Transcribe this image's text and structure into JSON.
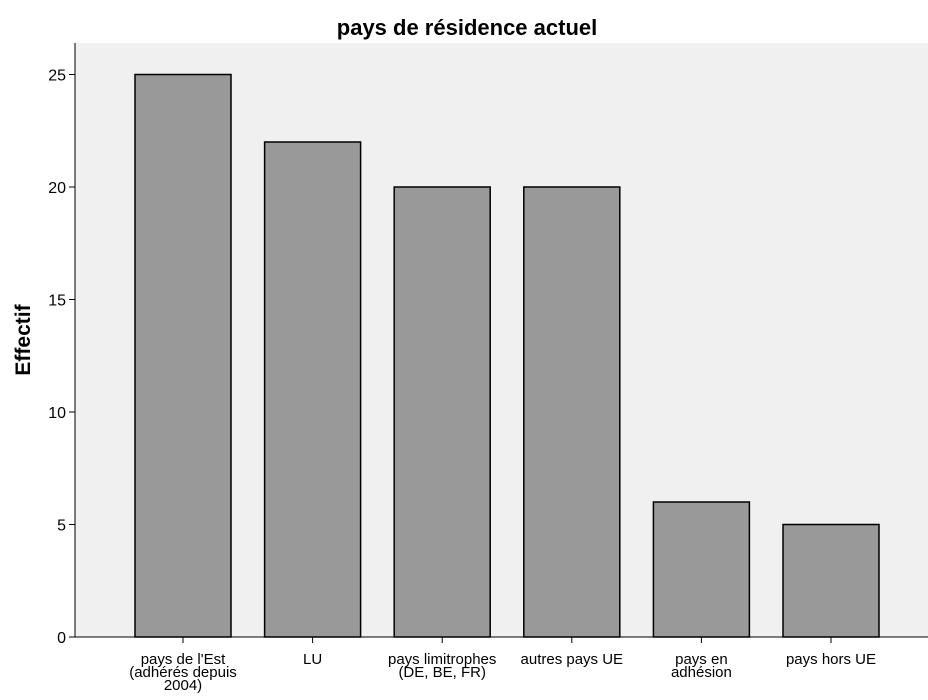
{
  "chart_data": {
    "type": "bar",
    "title": "pays de résidence actuel",
    "xlabel": "",
    "ylabel": "Effectif",
    "categories": [
      [
        "pays de l'Est",
        "(adhérés depuis",
        "2004)"
      ],
      [
        "LU"
      ],
      [
        "pays limitrophes",
        "(DE, BE, FR)"
      ],
      [
        "autres pays UE"
      ],
      [
        "pays en",
        "adhésion"
      ],
      [
        "pays hors UE"
      ]
    ],
    "values": [
      25,
      22,
      20,
      20,
      6,
      5
    ],
    "yticks": [
      0,
      5,
      10,
      15,
      20,
      25
    ],
    "ylim": [
      0,
      26.4
    ],
    "grid": false,
    "colors": {
      "bar_fill": "#999999",
      "bar_stroke": "#000000",
      "plot_background": "#f0f0f0",
      "page_background": "#ffffff"
    }
  }
}
